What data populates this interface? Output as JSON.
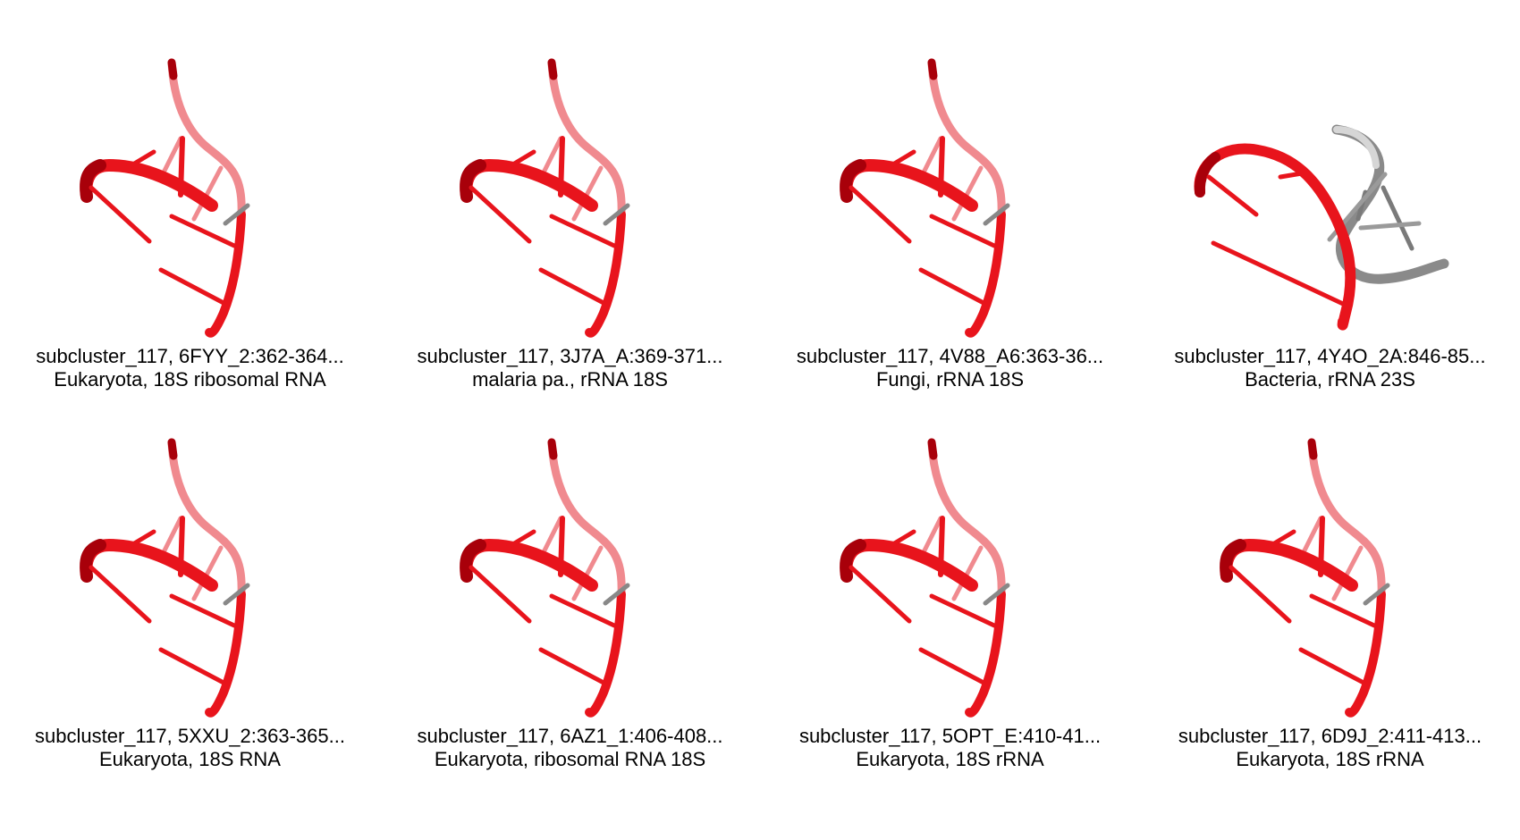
{
  "colors": {
    "strand_red": "#e8141c",
    "strand_dark_red": "#a8000a",
    "strand_faded": "#f08a8f",
    "strand_gray": "#8a8a8a",
    "strand_light_gray": "#cfcfcf",
    "background": "#ffffff"
  },
  "panels": [
    {
      "id": "6FYY",
      "title": "subcluster_117, 6FYY_2:362-364...",
      "subtitle": "Eukaryota, 18S ribosomal RNA",
      "variant": "red"
    },
    {
      "id": "3J7A",
      "title": "subcluster_117, 3J7A_A:369-371...",
      "subtitle": "malaria pa., rRNA 18S",
      "variant": "red"
    },
    {
      "id": "4V88",
      "title": "subcluster_117, 4V88_A6:363-36...",
      "subtitle": "Fungi, rRNA 18S",
      "variant": "red"
    },
    {
      "id": "4Y4O",
      "title": "subcluster_117, 4Y4O_2A:846-85...",
      "subtitle": "Bacteria, rRNA 23S",
      "variant": "mixed"
    },
    {
      "id": "5XXU",
      "title": "subcluster_117, 5XXU_2:363-365...",
      "subtitle": "Eukaryota, 18S RNA",
      "variant": "red"
    },
    {
      "id": "6AZ1",
      "title": "subcluster_117, 6AZ1_1:406-408...",
      "subtitle": "Eukaryota, ribosomal RNA 18S",
      "variant": "red"
    },
    {
      "id": "5OPT",
      "title": "subcluster_117, 5OPT_E:410-41...",
      "subtitle": "Eukaryota, 18S rRNA",
      "variant": "red"
    },
    {
      "id": "6D9J",
      "title": "subcluster_117, 6D9J_2:411-413...",
      "subtitle": "Eukaryota, 18S rRNA",
      "variant": "red"
    }
  ]
}
